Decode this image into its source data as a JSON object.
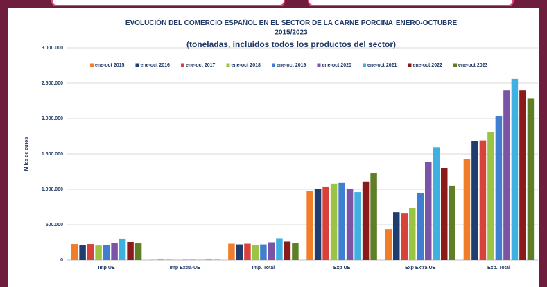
{
  "chart_data": {
    "type": "bar",
    "title": [
      "EVOLUCIÓN DEL COMERCIO ESPAÑOL EN EL SECTOR DE LA CARNE PORCINA",
      "ENERO-OCTUBRE",
      "2015/2023"
    ],
    "subtitle": "(toneladas, incluidos todos los productos del sector)",
    "y_label": "Miles de euros",
    "categories": [
      "Imp UE",
      "Imp Extra-UE",
      "Imp. Total",
      "Exp UE",
      "Exp Extra-UE",
      "Exp. Total"
    ],
    "series": [
      {
        "name": "ene-oct 2015",
        "color": "#f07d2a",
        "values": [
          225000,
          4000,
          230000,
          980000,
          430000,
          1430000
        ]
      },
      {
        "name": "ene-oct 2016",
        "color": "#1f3d6e",
        "values": [
          215000,
          4000,
          220000,
          1010000,
          675000,
          1680000
        ]
      },
      {
        "name": "ene-oct 2017",
        "color": "#d9413b",
        "values": [
          225000,
          4000,
          230000,
          1030000,
          665000,
          1690000
        ]
      },
      {
        "name": "ene-oct 2018",
        "color": "#9bc443",
        "values": [
          205000,
          4000,
          210000,
          1080000,
          735000,
          1810000
        ]
      },
      {
        "name": "ene-oct 2019",
        "color": "#3f7ed0",
        "values": [
          215000,
          4000,
          220000,
          1090000,
          950000,
          2030000
        ]
      },
      {
        "name": "ene-oct 2020",
        "color": "#7b54a5",
        "values": [
          245000,
          4000,
          250000,
          1010000,
          1390000,
          2400000
        ]
      },
      {
        "name": "ene-oct 2021",
        "color": "#3fb0e0",
        "values": [
          295000,
          4000,
          300000,
          960000,
          1595000,
          2560000
        ]
      },
      {
        "name": "ene-oct 2022",
        "color": "#8b1a1a",
        "values": [
          255000,
          4000,
          260000,
          1110000,
          1295000,
          2400000
        ]
      },
      {
        "name": "ene-oct 2023",
        "color": "#5f7f27",
        "values": [
          235000,
          4000,
          240000,
          1225000,
          1050000,
          2280000
        ]
      }
    ],
    "ylim": [
      0,
      3000000
    ],
    "yticks": [
      0,
      {
        "value": 500000,
        "label": "500.000"
      },
      {
        "value": 1000000,
        "label": "1.000.000"
      },
      {
        "value": 1500000,
        "label": "1.500.000"
      },
      {
        "value": 2000000,
        "label": "2.000.000"
      },
      {
        "value": 2500000,
        "label": "2.500.000"
      },
      {
        "value": 3000000,
        "label": "3.000.000"
      }
    ],
    "grid": true,
    "legend": "top"
  }
}
